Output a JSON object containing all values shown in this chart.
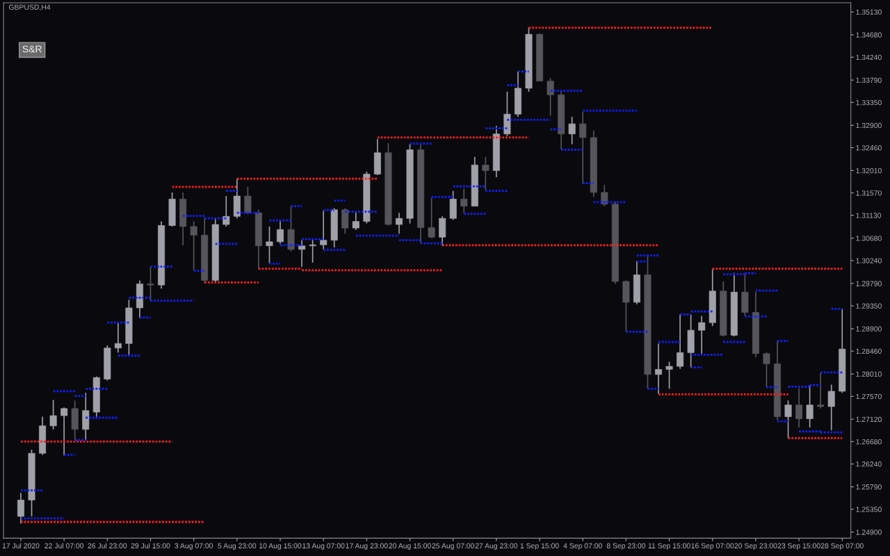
{
  "chart_data": {
    "type": "candlestick",
    "title": "GBPUSD,H4",
    "annotations": [
      "S&R"
    ],
    "categories": [
      "17 Jul 2020",
      null,
      null,
      null,
      "22 Jul 07:00",
      null,
      null,
      null,
      "26 Jul 23:00",
      null,
      null,
      null,
      "29 Jul 15:00",
      null,
      null,
      null,
      "3 Aug 07:00",
      null,
      null,
      null,
      "5 Aug 23:00",
      null,
      null,
      null,
      "10 Aug 15:00",
      null,
      null,
      null,
      "13 Aug 07:00",
      null,
      null,
      null,
      "17 Aug 23:00",
      null,
      null,
      null,
      "20 Aug 15:00",
      null,
      null,
      null,
      "25 Aug 07:00",
      null,
      null,
      null,
      "27 Aug 23:00",
      null,
      null,
      null,
      "1 Sep 15:00",
      null,
      null,
      null,
      "4 Sep 07:00",
      null,
      null,
      null,
      "8 Sep 23:00",
      null,
      null,
      null,
      "11 Sep 15:00",
      null,
      null,
      null,
      "16 Sep 07:00",
      null,
      null,
      null,
      "20 Sep 23:00",
      null,
      null,
      null,
      "23 Sep 15:00",
      null,
      null,
      null,
      "28 Sep 07:00"
    ],
    "ohlc": [
      [
        1.2521,
        1.2567,
        1.2507,
        1.2553
      ],
      [
        1.2553,
        1.2652,
        1.2521,
        1.2645
      ],
      [
        1.2645,
        1.2717,
        1.2642,
        1.2699
      ],
      [
        1.2699,
        1.275,
        1.2692,
        1.2719
      ],
      [
        1.2719,
        1.2735,
        1.2641,
        1.2733
      ],
      [
        1.2733,
        1.2749,
        1.2671,
        1.2692
      ],
      [
        1.2692,
        1.2764,
        1.2671,
        1.2729
      ],
      [
        1.2726,
        1.2796,
        1.2713,
        1.2794
      ],
      [
        1.2791,
        1.2857,
        1.2788,
        1.2852
      ],
      [
        1.2852,
        1.2902,
        1.2843,
        1.2861
      ],
      [
        1.2861,
        1.2947,
        1.2838,
        1.2931
      ],
      [
        1.2931,
        1.2985,
        1.2911,
        1.2978
      ],
      [
        1.2978,
        1.3012,
        1.2945,
        1.2976
      ],
      [
        1.2976,
        1.3101,
        1.2969,
        1.3093
      ],
      [
        1.3093,
        1.3158,
        1.3091,
        1.3145
      ],
      [
        1.3145,
        1.3158,
        1.3054,
        1.3091
      ],
      [
        1.3091,
        1.3101,
        1.3005,
        1.3074
      ],
      [
        1.3074,
        1.3107,
        1.298,
        1.2985
      ],
      [
        1.2985,
        1.3107,
        1.298,
        1.3095
      ],
      [
        1.3095,
        1.3151,
        1.3091,
        1.3111
      ],
      [
        1.3111,
        1.3185,
        1.3107,
        1.3151
      ],
      [
        1.3151,
        1.3169,
        1.3115,
        1.3118
      ],
      [
        1.3118,
        1.3124,
        1.3007,
        1.3053
      ],
      [
        1.3053,
        1.3091,
        1.3019,
        1.3061
      ],
      [
        1.3061,
        1.3103,
        1.3057,
        1.3085
      ],
      [
        1.3085,
        1.3131,
        1.3042,
        1.3046
      ],
      [
        1.3046,
        1.3064,
        1.3012,
        1.3053
      ],
      [
        1.3053,
        1.3066,
        1.302,
        1.3055
      ],
      [
        1.3055,
        1.3122,
        1.3046,
        1.3064
      ],
      [
        1.3064,
        1.3127,
        1.305,
        1.3124
      ],
      [
        1.3124,
        1.3127,
        1.3077,
        1.3088
      ],
      [
        1.3088,
        1.312,
        1.3084,
        1.3101
      ],
      [
        1.3101,
        1.3199,
        1.3097,
        1.3194
      ],
      [
        1.3194,
        1.3263,
        1.3192,
        1.3236
      ],
      [
        1.3236,
        1.3255,
        1.3093,
        1.3095
      ],
      [
        1.3095,
        1.3118,
        1.3077,
        1.3107
      ],
      [
        1.3107,
        1.3253,
        1.3097,
        1.3242
      ],
      [
        1.3242,
        1.3253,
        1.3059,
        1.3089
      ],
      [
        1.3089,
        1.3147,
        1.3068,
        1.307
      ],
      [
        1.307,
        1.3111,
        1.3053,
        1.3107
      ],
      [
        1.3107,
        1.3161,
        1.3104,
        1.3145
      ],
      [
        1.3145,
        1.3165,
        1.3118,
        1.3131
      ],
      [
        1.3131,
        1.3228,
        1.3131,
        1.3212
      ],
      [
        1.3212,
        1.3228,
        1.3162,
        1.3201
      ],
      [
        1.3201,
        1.3289,
        1.3188,
        1.3273
      ],
      [
        1.3273,
        1.3356,
        1.3269,
        1.3312
      ],
      [
        1.3312,
        1.3396,
        1.3307,
        1.3363
      ],
      [
        1.3363,
        1.3482,
        1.3356,
        1.3469
      ],
      [
        1.3469,
        1.3471,
        1.3377,
        1.3377
      ],
      [
        1.3377,
        1.3383,
        1.3309,
        1.335
      ],
      [
        1.335,
        1.3356,
        1.3243,
        1.3273
      ],
      [
        1.3273,
        1.3307,
        1.3253,
        1.3293
      ],
      [
        1.3293,
        1.3316,
        1.3176,
        1.3266
      ],
      [
        1.3266,
        1.328,
        1.3149,
        1.3158
      ],
      [
        1.3158,
        1.3173,
        1.3131,
        1.3135
      ],
      [
        1.3135,
        1.314,
        1.2978,
        1.2983
      ],
      [
        1.2983,
        1.2985,
        1.2884,
        1.2942
      ],
      [
        1.2942,
        1.3023,
        1.2938,
        1.2996
      ],
      [
        1.2996,
        1.3032,
        1.2772,
        1.28
      ],
      [
        1.28,
        1.2861,
        1.2762,
        1.281
      ],
      [
        1.281,
        1.2825,
        1.2772,
        1.2816
      ],
      [
        1.2816,
        1.2918,
        1.2811,
        1.2843
      ],
      [
        1.2843,
        1.2918,
        1.2814,
        1.2887
      ],
      [
        1.2887,
        1.2915,
        1.2841,
        1.2902
      ],
      [
        1.2902,
        1.3007,
        1.2895,
        1.2964
      ],
      [
        1.2964,
        1.2983,
        1.2875,
        1.2877
      ],
      [
        1.2877,
        1.3,
        1.2875,
        1.2962
      ],
      [
        1.2962,
        1.2999,
        1.2915,
        1.2922
      ],
      [
        1.2922,
        1.2962,
        1.2834,
        1.2841
      ],
      [
        1.2841,
        1.2843,
        1.2776,
        1.2821
      ],
      [
        1.2821,
        1.2866,
        1.271,
        1.2717
      ],
      [
        1.2717,
        1.2749,
        1.2675,
        1.274
      ],
      [
        1.274,
        1.2773,
        1.2696,
        1.2713
      ],
      [
        1.2713,
        1.2779,
        1.2696,
        1.274
      ],
      [
        1.274,
        1.2804,
        1.2733,
        1.2737
      ],
      [
        1.2737,
        1.278,
        1.269,
        1.2767
      ],
      [
        1.2767,
        1.2929,
        1.2764,
        1.285
      ]
    ],
    "colors": [
      "#a0a0a8",
      "#a0a0a8",
      "#a0a0a8",
      "#a0a0a8",
      "#a0a0a8",
      "#55555b",
      "#a0a0a8",
      "#a0a0a8",
      "#a0a0a8",
      "#a0a0a8",
      "#a0a0a8",
      "#a0a0a8",
      "#55555b",
      "#a0a0a8",
      "#a0a0a8",
      "#55555b",
      "#55555b",
      "#55555b",
      "#a0a0a8",
      "#a0a0a8",
      "#a0a0a8",
      "#55555b",
      "#55555b",
      "#a0a0a8",
      "#a0a0a8",
      "#55555b",
      "#a0a0a8",
      "#a0a0a8",
      "#a0a0a8",
      "#a0a0a8",
      "#55555b",
      "#a0a0a8",
      "#a0a0a8",
      "#a0a0a8",
      "#55555b",
      "#a0a0a8",
      "#a0a0a8",
      "#55555b",
      "#55555b",
      "#a0a0a8",
      "#a0a0a8",
      "#55555b",
      "#a0a0a8",
      "#55555b",
      "#a0a0a8",
      "#a0a0a8",
      "#a0a0a8",
      "#a0a0a8",
      "#55555b",
      "#55555b",
      "#55555b",
      "#a0a0a8",
      "#55555b",
      "#55555b",
      "#55555b",
      "#55555b",
      "#55555b",
      "#a0a0a8",
      "#55555b",
      "#a0a0a8",
      "#a0a0a8",
      "#a0a0a8",
      "#a0a0a8",
      "#a0a0a8",
      "#a0a0a8",
      "#55555b",
      "#a0a0a8",
      "#55555b",
      "#55555b",
      "#55555b",
      "#55555b",
      "#a0a0a8",
      "#55555b",
      "#a0a0a8",
      "#55555b",
      "#a0a0a8",
      "#a0a0a8"
    ],
    "series": [
      {
        "type": "line",
        "color": "#ff2020",
        "line_style": "dotted",
        "values": [
          1.2668,
          1.2668,
          1.2668,
          1.2668,
          1.2668,
          1.2668,
          1.2668,
          1.2668,
          1.2668,
          1.2668,
          1.2668,
          1.2668,
          1.2668,
          1.2668,
          1.2668,
          null,
          null,
          1.2981,
          1.2981,
          1.2981,
          1.2981,
          1.2981,
          1.2981,
          null,
          null,
          null,
          1.3005,
          1.3005,
          1.3005,
          1.3005,
          1.3005,
          1.3005,
          1.3005,
          1.3005,
          1.3005,
          1.3005,
          1.3005,
          1.3005,
          1.3005,
          1.3005,
          null,
          null,
          null,
          null,
          null,
          null,
          null,
          1.3482,
          1.3482,
          1.3482,
          1.3482,
          1.3482,
          1.3482,
          1.3482,
          1.3482,
          1.3482,
          1.3482,
          1.3482,
          1.3482,
          1.3482,
          1.3482,
          1.3482,
          1.3482,
          1.3482,
          1.3482,
          null,
          null,
          null,
          null,
          null,
          null,
          1.2675,
          1.2675,
          1.2675,
          1.2675,
          1.2675,
          1.2675
        ]
      },
      {
        "type": "line",
        "color": "#fe2222",
        "line_style": "dotted",
        "values": [
          1.251,
          1.251,
          1.251,
          1.251,
          1.251,
          1.251,
          1.251,
          1.251,
          1.251,
          1.251,
          1.251,
          1.251,
          1.251,
          1.251,
          1.251,
          1.251,
          1.251,
          1.251,
          null,
          null,
          1.3185,
          1.3185,
          1.3185,
          1.3185,
          1.3185,
          1.3185,
          1.3185,
          1.3185,
          1.3185,
          1.3185,
          1.3185,
          1.3185,
          1.3185,
          1.3185,
          null,
          null,
          null,
          null,
          null,
          1.3054,
          1.3054,
          1.3054,
          1.3054,
          1.3054,
          1.3054,
          1.3054,
          1.3054,
          1.3054,
          1.3054,
          1.3054,
          1.3054,
          1.3054,
          1.3054,
          1.3054,
          1.3054,
          1.3054,
          1.3054,
          1.3054,
          1.3054,
          1.3054,
          null,
          null,
          null,
          null,
          1.3008,
          1.3008,
          1.3008,
          1.3008,
          1.3008,
          1.3008,
          1.3008,
          1.3008,
          1.3008,
          1.3008,
          1.3008,
          1.3008,
          1.3008
        ]
      },
      {
        "type": "line",
        "color": "#fd1e1e",
        "line_style": "dotted",
        "values": [
          null,
          null,
          null,
          null,
          null,
          null,
          null,
          null,
          null,
          null,
          null,
          null,
          null,
          null,
          1.3169,
          1.3169,
          1.3169,
          1.3169,
          1.3169,
          1.3169,
          1.3169,
          null,
          1.3008,
          1.3008,
          1.3008,
          1.3008,
          1.3008,
          null,
          null,
          null,
          null,
          null,
          null,
          1.3266,
          1.3266,
          1.3266,
          1.3266,
          1.3266,
          1.3266,
          1.3266,
          1.3266,
          1.3266,
          1.3266,
          1.3266,
          1.3266,
          1.3266,
          1.3266,
          1.3266,
          null,
          null,
          null,
          null,
          null,
          null,
          null,
          null,
          null,
          null,
          null,
          1.2761,
          1.2761,
          1.2761,
          1.2761,
          1.2761,
          1.2761,
          1.2761,
          1.2761,
          1.2761,
          1.2761,
          1.2761,
          1.2761,
          1.2761,
          null,
          null,
          null,
          null,
          null
        ]
      },
      {
        "type": "line",
        "color": "#1020ff",
        "line_style": "dotted",
        "values": [
          1.2572,
          1.2572,
          1.2572,
          null,
          1.2642,
          1.2642,
          null,
          null,
          1.2902,
          1.2902,
          1.2902,
          null,
          null,
          null,
          null,
          1.3112,
          1.3112,
          1.3112,
          null,
          null,
          null,
          null,
          null,
          1.3103,
          1.3103,
          1.3103,
          null,
          null,
          1.3123,
          1.3123,
          null,
          null,
          null,
          null,
          null,
          null,
          null,
          1.3058,
          1.3058,
          1.3058,
          null,
          null,
          null,
          null,
          null,
          1.3301,
          1.3301,
          1.3301,
          1.3301,
          1.3301,
          null,
          null,
          null,
          1.3139,
          1.3139,
          1.3139,
          1.3139,
          null,
          1.2772,
          1.2772,
          null,
          null,
          null,
          null,
          null,
          1.2997,
          1.2997,
          1.2997,
          null,
          null,
          1.2866,
          1.2866,
          null,
          null,
          1.2804,
          1.2804,
          1.2804
        ]
      },
      {
        "type": "line",
        "color": "#1222fe",
        "line_style": "dotted",
        "values": [
          1.2517,
          1.2517,
          1.2517,
          1.2517,
          1.2517,
          null,
          1.2772,
          1.2772,
          1.2772,
          null,
          null,
          null,
          1.3012,
          1.3012,
          1.3012,
          null,
          null,
          null,
          null,
          1.3161,
          1.3161,
          null,
          null,
          null,
          null,
          null,
          1.3066,
          1.3066,
          1.3066,
          null,
          null,
          null,
          null,
          null,
          null,
          1.3064,
          1.3064,
          1.3064,
          null,
          null,
          null,
          null,
          null,
          1.3284,
          1.3284,
          1.3284,
          null,
          null,
          null,
          1.3282,
          1.3282,
          null,
          null,
          null,
          null,
          null,
          1.2884,
          1.2884,
          1.2884,
          null,
          null,
          null,
          1.2924,
          1.2924,
          1.2924,
          null,
          null,
          null,
          1.2965,
          1.2965,
          1.2965,
          null,
          null,
          1.2779,
          1.2779,
          null,
          null
        ]
      },
      {
        "type": "line",
        "color": "#0e1efd",
        "line_style": "dotted",
        "values": [
          null,
          null,
          null,
          1.2767,
          1.2767,
          1.2767,
          null,
          null,
          null,
          1.2837,
          1.2837,
          1.2837,
          null,
          null,
          null,
          null,
          1.3004,
          1.3004,
          null,
          null,
          null,
          null,
          null,
          1.3018,
          1.3018,
          null,
          null,
          null,
          null,
          1.3142,
          1.3142,
          null,
          null,
          null,
          null,
          null,
          null,
          null,
          1.3149,
          1.3149,
          1.3149,
          null,
          null,
          null,
          null,
          1.3369,
          1.3369,
          null,
          null,
          null,
          null,
          null,
          1.3319,
          1.3319,
          1.3319,
          1.3319,
          1.3319,
          1.3319,
          null,
          1.2864,
          1.2864,
          1.2864,
          null,
          null,
          null,
          1.2864,
          1.2864,
          1.2864,
          null,
          null,
          1.2708,
          1.2708,
          null,
          null,
          null,
          1.2929,
          1.2929
        ]
      },
      {
        "type": "line",
        "color": "#1424ff",
        "line_style": "dotted",
        "values": [
          null,
          null,
          null,
          null,
          null,
          1.2671,
          1.2671,
          null,
          null,
          null,
          1.2951,
          1.2951,
          1.2951,
          null,
          null,
          null,
          null,
          1.3107,
          1.3107,
          1.3107,
          null,
          null,
          null,
          null,
          1.3054,
          1.3054,
          1.3054,
          null,
          null,
          null,
          1.312,
          1.312,
          1.312,
          1.312,
          null,
          null,
          null,
          null,
          null,
          null,
          1.317,
          1.317,
          1.317,
          1.317,
          null,
          null,
          1.3396,
          1.3396,
          null,
          null,
          null,
          null,
          1.3176,
          1.3176,
          null,
          null,
          null,
          null,
          null,
          null,
          null,
          1.2918,
          1.2918,
          null,
          null,
          null,
          null,
          1.2999,
          1.2999,
          null,
          null,
          1.2776,
          1.2776,
          1.2776,
          null,
          null,
          null
        ]
      },
      {
        "type": "line",
        "color": "#1020fb",
        "line_style": "dotted",
        "values": [
          null,
          null,
          null,
          null,
          null,
          1.2758,
          1.2758,
          null,
          null,
          null,
          null,
          1.2912,
          1.2912,
          null,
          null,
          null,
          null,
          null,
          1.3057,
          1.3057,
          1.3057,
          null,
          null,
          null,
          null,
          1.3131,
          1.3131,
          null,
          null,
          null,
          null,
          1.3073,
          1.3073,
          1.3073,
          1.3073,
          1.3073,
          null,
          null,
          null,
          null,
          null,
          1.3116,
          1.3116,
          1.3116,
          null,
          null,
          null,
          null,
          null,
          1.3358,
          1.3358,
          1.3358,
          1.3358,
          null,
          null,
          null,
          null,
          1.3022,
          1.3022,
          null,
          null,
          null,
          1.2814,
          1.2814,
          null,
          null,
          null,
          1.2914,
          1.2914,
          1.2914,
          null,
          null,
          1.2688,
          1.2688,
          1.2688,
          null,
          null
        ]
      },
      {
        "type": "line",
        "color": "#121ffc",
        "line_style": "dotted",
        "values": [
          null,
          null,
          null,
          null,
          null,
          null,
          1.2715,
          1.2715,
          1.2715,
          1.2715,
          null,
          null,
          1.2945,
          1.2945,
          1.2945,
          1.2945,
          1.2945,
          null,
          null,
          null,
          1.3118,
          1.3118,
          1.3118,
          null,
          null,
          null,
          null,
          null,
          1.3045,
          1.3045,
          1.3045,
          null,
          null,
          null,
          null,
          null,
          1.3254,
          1.3254,
          1.3254,
          null,
          null,
          null,
          null,
          1.3161,
          1.3161,
          1.3161,
          null,
          null,
          null,
          null,
          1.3242,
          1.3242,
          1.3242,
          null,
          null,
          null,
          null,
          1.3034,
          1.3034,
          1.3034,
          null,
          null,
          1.2839,
          1.2839,
          1.2839,
          1.2839,
          null,
          null,
          null,
          1.2775,
          1.2775,
          null,
          null,
          null,
          1.2686,
          1.2686,
          1.2686
        ]
      }
    ],
    "ylim": [
      1.2478,
      1.3531
    ],
    "yticks": [
      {
        "value": 1.249,
        "label": "1.24900"
      },
      {
        "value": 1.2535,
        "label": "1.25350"
      },
      {
        "value": 1.2579,
        "label": "1.25790"
      },
      {
        "value": 1.2624,
        "label": "1.26240"
      },
      {
        "value": 1.2668,
        "label": "1.26680"
      },
      {
        "value": 1.2712,
        "label": "1.27120"
      },
      {
        "value": 1.2757,
        "label": "1.27570"
      },
      {
        "value": 1.2801,
        "label": "1.28010"
      },
      {
        "value": 1.2846,
        "label": "1.28460"
      },
      {
        "value": 1.289,
        "label": "1.28900"
      },
      {
        "value": 1.2935,
        "label": "1.29350"
      },
      {
        "value": 1.2979,
        "label": "1.29790"
      },
      {
        "value": 1.3024,
        "label": "1.30240"
      },
      {
        "value": 1.3068,
        "label": "1.30680"
      },
      {
        "value": 1.3113,
        "label": "1.31130"
      },
      {
        "value": 1.3157,
        "label": "1.31570"
      },
      {
        "value": 1.3201,
        "label": "1.32010"
      },
      {
        "value": 1.3246,
        "label": "1.32460"
      },
      {
        "value": 1.329,
        "label": "1.32900"
      },
      {
        "value": 1.3335,
        "label": "1.33350"
      },
      {
        "value": 1.3379,
        "label": "1.33790"
      },
      {
        "value": 1.3424,
        "label": "1.34240"
      },
      {
        "value": 1.3468,
        "label": "1.34680"
      },
      {
        "value": 1.3513,
        "label": "1.35130"
      }
    ]
  }
}
